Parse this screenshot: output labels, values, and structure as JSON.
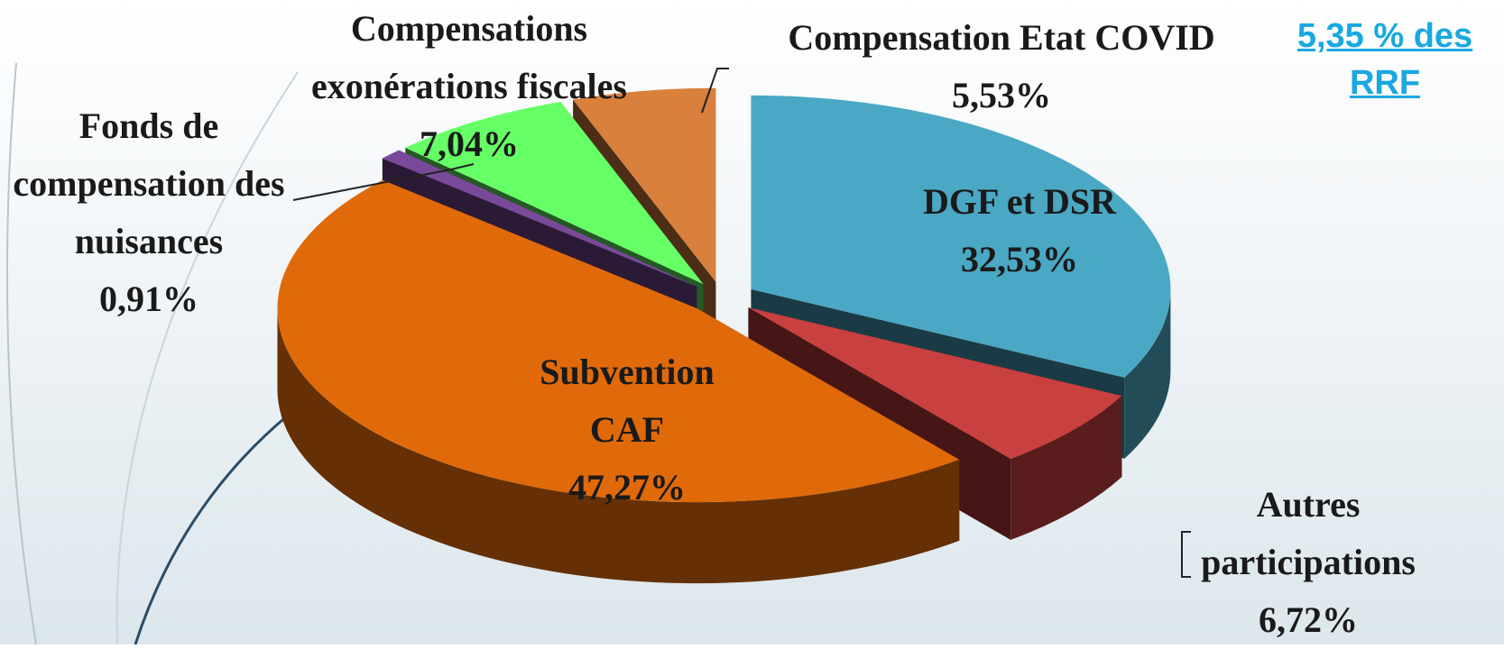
{
  "chart_data": {
    "type": "pie3d",
    "categories": [
      "DGF et DSR",
      "Autres participations",
      "Subvention CAF",
      "Fonds de compensation des nuisances",
      "Compensations exonérations fiscales",
      "Compensation Etat COVID"
    ],
    "values": [
      32.53,
      6.72,
      47.27,
      0.91,
      7.04,
      5.53
    ],
    "value_labels": [
      "32,53%",
      "6,72%",
      "47,27%",
      "0,91%",
      "7,04%",
      "5,53%"
    ],
    "colors": [
      "#4aa8c4",
      "#c84040",
      "#e06a0a",
      "#7a4a9a",
      "#66ff66",
      "#d8803c"
    ],
    "annotation": "5,35 % des RRF"
  }
}
